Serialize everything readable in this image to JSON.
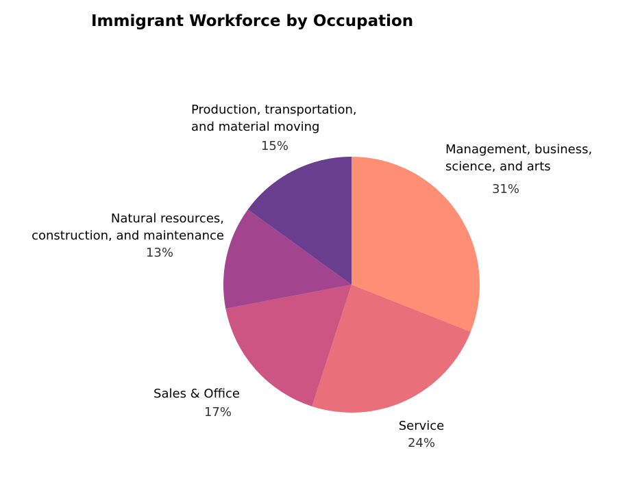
{
  "chart_data": {
    "type": "pie",
    "title": "Immigrant Workforce by Occupation",
    "slices": [
      {
        "label": [
          "Management, business,",
          "science, and arts"
        ],
        "value": 31,
        "pct_label": "31%",
        "color": "#fe8f74"
      },
      {
        "label": [
          "Service"
        ],
        "value": 24,
        "pct_label": "24%",
        "color": "#e9707a"
      },
      {
        "label": [
          "Sales & Office"
        ],
        "value": 17,
        "pct_label": "17%",
        "color": "#cd5584"
      },
      {
        "label": [
          "Natural resources,",
          "construction, and maintenance"
        ],
        "value": 13,
        "pct_label": "13%",
        "color": "#a2448e"
      },
      {
        "label": [
          "Production, transportation,",
          "and material moving"
        ],
        "value": 15,
        "pct_label": "15%",
        "color": "#693e8e"
      }
    ],
    "start_angle": "12 o'clock",
    "direction": "clockwise",
    "legend": "none"
  }
}
